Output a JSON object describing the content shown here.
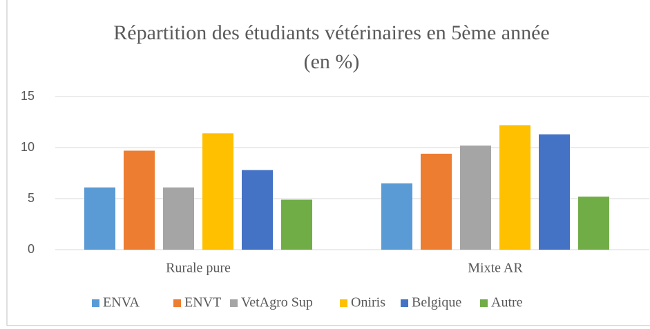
{
  "chart_data": {
    "type": "bar",
    "title": [
      "Répartition des étudiants vétérinaires en 5ème année",
      "(en %)"
    ],
    "categories": [
      "Rurale pure",
      "Mixte AR"
    ],
    "series": [
      {
        "name": "ENVA",
        "color": "#5b9bd5",
        "values": [
          6.1,
          6.5
        ]
      },
      {
        "name": "ENVT",
        "color": "#ed7d31",
        "values": [
          9.7,
          9.4
        ]
      },
      {
        "name": "VetAgro Sup",
        "color": "#a5a5a5",
        "values": [
          6.1,
          10.2
        ]
      },
      {
        "name": "Oniris",
        "color": "#ffc000",
        "values": [
          11.4,
          12.2
        ]
      },
      {
        "name": "Belgique",
        "color": "#4472c4",
        "values": [
          7.8,
          11.3
        ]
      },
      {
        "name": "Autre",
        "color": "#70ad47",
        "values": [
          4.9,
          5.2
        ]
      }
    ],
    "ylim": [
      0,
      15
    ],
    "yticks": [
      0,
      5,
      10,
      15
    ],
    "grid": true,
    "legend": "bottom"
  }
}
